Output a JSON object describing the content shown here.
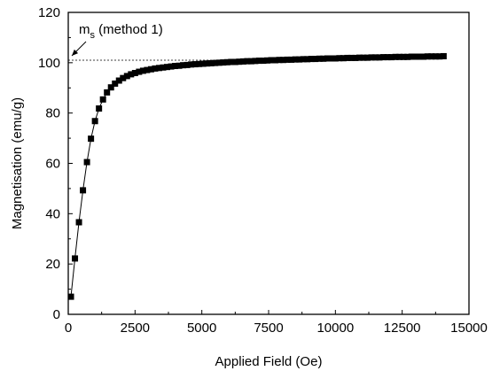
{
  "chart_data": {
    "type": "scatter",
    "xlabel": "Applied Field (Oe)",
    "ylabel": "Magnetisation (emu/g)",
    "xlim": [
      0,
      15000
    ],
    "ylim": [
      0,
      120
    ],
    "xticks": [
      0,
      2500,
      5000,
      7500,
      10000,
      12500,
      15000
    ],
    "yticks": [
      0,
      20,
      40,
      60,
      80,
      100,
      120
    ],
    "grid": false,
    "marker": "filled-square",
    "line_through_points": true,
    "series": [
      {
        "x": [
          100,
          250,
          400,
          550,
          700,
          850,
          1000,
          1150,
          1300,
          1450,
          1600,
          1750,
          1900,
          2050,
          2200,
          2350,
          2500,
          2650,
          2800,
          2950,
          3100,
          3250,
          3400,
          3550,
          3700,
          3850,
          4000,
          4150,
          4300,
          4450,
          4600,
          4750,
          4900,
          5050,
          5200,
          5350,
          5500,
          5650,
          5800,
          5950,
          6100,
          6250,
          6400,
          6550,
          6700,
          6850,
          7000,
          7150,
          7300,
          7450,
          7600,
          7750,
          7900,
          8050,
          8200,
          8350,
          8500,
          8650,
          8800,
          8950,
          9100,
          9250,
          9400,
          9550,
          9700,
          9850,
          10000,
          10150,
          10300,
          10450,
          10600,
          10750,
          10900,
          11050,
          11200,
          11350,
          11500,
          11650,
          11800,
          11950,
          12100,
          12250,
          12400,
          12550,
          12700,
          12850,
          13000,
          13150,
          13300,
          13450,
          13600,
          13750,
          13900,
          14050
        ],
        "y": [
          7.0,
          22.2,
          36.6,
          49.3,
          60.5,
          69.8,
          76.8,
          81.8,
          85.4,
          88.2,
          90.2,
          91.7,
          92.9,
          93.9,
          94.7,
          95.4,
          95.9,
          96.4,
          96.8,
          97.1,
          97.4,
          97.7,
          97.9,
          98.1,
          98.3,
          98.5,
          98.7,
          98.8,
          99.0,
          99.1,
          99.3,
          99.4,
          99.5,
          99.6,
          99.7,
          99.8,
          99.9,
          100.0,
          100.1,
          100.2,
          100.3,
          100.3,
          100.4,
          100.5,
          100.6,
          100.6,
          100.7,
          100.8,
          100.8,
          100.9,
          101.0,
          101.0,
          101.1,
          101.1,
          101.2,
          101.2,
          101.3,
          101.3,
          101.4,
          101.4,
          101.5,
          101.5,
          101.6,
          101.6,
          101.7,
          101.7,
          101.7,
          101.8,
          101.8,
          101.9,
          101.9,
          101.9,
          102.0,
          102.0,
          102.0,
          102.1,
          102.1,
          102.1,
          102.2,
          102.2,
          102.2,
          102.3,
          102.3,
          102.3,
          102.3,
          102.4,
          102.4,
          102.4,
          102.4,
          102.5,
          102.5,
          102.5,
          102.5,
          102.6
        ]
      }
    ],
    "reference_line": {
      "style": "dotted",
      "y": 101,
      "x_start": 0,
      "x_end": 5800
    },
    "annotation": {
      "text_main": "m",
      "text_sub": "s",
      "text_rest": " (method 1)",
      "points_to": {
        "x": 0,
        "y": 101
      }
    }
  }
}
